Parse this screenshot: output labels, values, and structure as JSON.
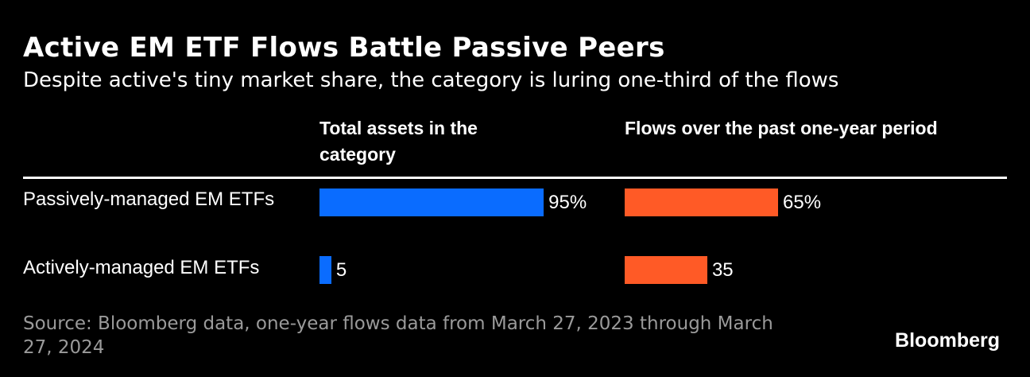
{
  "chart_data": {
    "type": "bar",
    "title": "Active EM ETF Flows Battle Passive Peers",
    "subtitle": "Despite active's tiny market share, the category is luring one-third of the flows",
    "categories": [
      "Passively-managed EM ETFs",
      "Actively-managed EM ETFs"
    ],
    "series": [
      {
        "name": "Total assets in the category",
        "values": [
          95,
          5
        ],
        "labels": [
          "95%",
          "5"
        ],
        "color": "#0a6cff"
      },
      {
        "name": "Flows over the past one-year period",
        "values": [
          65,
          35
        ],
        "labels": [
          "65%",
          "35"
        ],
        "color": "#ff5a26"
      }
    ],
    "xlim": [
      0,
      100
    ],
    "orientation": "horizontal",
    "source": "Source: Bloomberg data, one-year flows data from March 27, 2023 through March 27, 2024",
    "brand": "Bloomberg"
  }
}
